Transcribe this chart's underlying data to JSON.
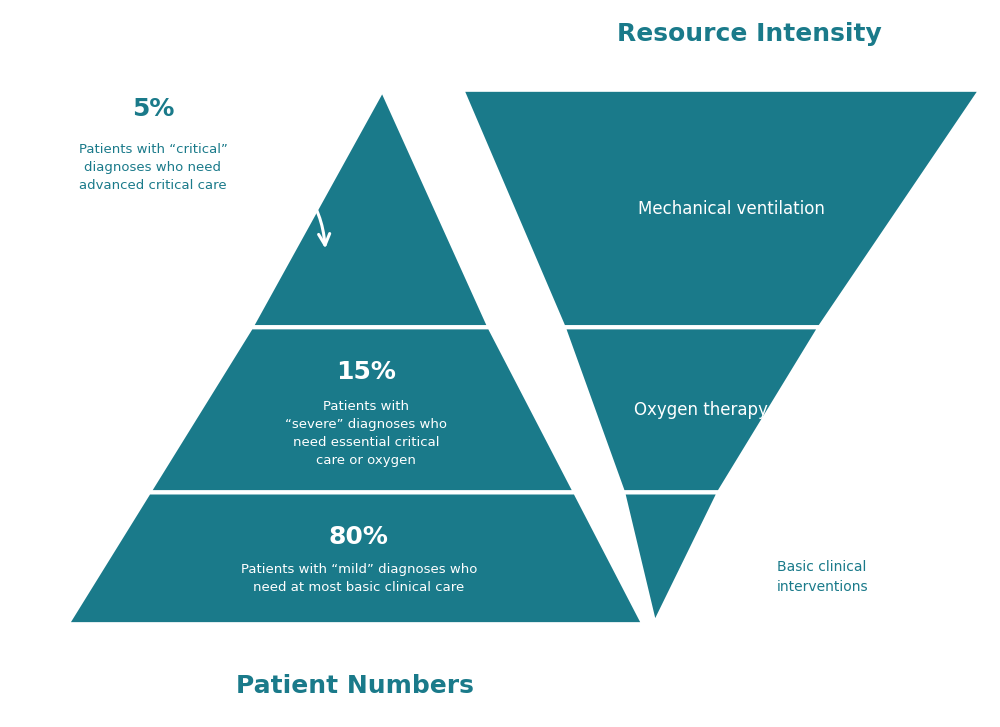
{
  "title_right": "Resource Intensity",
  "title_left_bottom": "Patient Numbers",
  "teal_color": "#1a7a8a",
  "bg_color": "#ffffff",
  "text_color_teal": "#1a7a8a",
  "left_pct": [
    "5%",
    "15%",
    "80%"
  ],
  "left_desc": [
    "Patients with “critical”\ndiagnoses who need\nadvanced critical care",
    "Patients with\n“severe” diagnoses who\nneed essential critical\ncare or oxygen",
    "Patients with “mild” diagnoses who\nneed at most basic clinical care"
  ],
  "right_labels": [
    "Mechanical ventilation",
    "Oxygen therapy",
    "Basic clinical\ninterventions"
  ]
}
